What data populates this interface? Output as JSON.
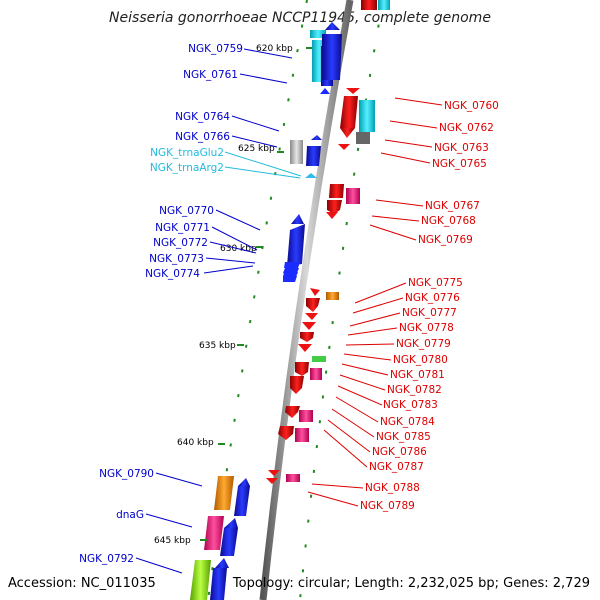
{
  "title": "Neisseria gonorrhoeae NCCP11945, complete genome",
  "footer": {
    "accession": "Accession: NC_011035",
    "topology": "Topology: circular; Length: 2,232,025 bp; Genes: 2,729"
  },
  "colors": {
    "forward_label": "#0000cc",
    "reverse_label": "#dd0000",
    "rna_label": "#22bbdd",
    "backbone": "#888888",
    "tick": "#228822"
  },
  "ticks": [
    "620 kbp",
    "625 kbp",
    "630 kbp",
    "635 kbp",
    "640 kbp",
    "645 kbp"
  ],
  "left_labels": [
    {
      "text": "NGK_0759",
      "type": "forward"
    },
    {
      "text": "NGK_0761",
      "type": "forward"
    },
    {
      "text": "NGK_0764",
      "type": "forward"
    },
    {
      "text": "NGK_0766",
      "type": "forward"
    },
    {
      "text": "NGK_trnaGlu2",
      "type": "rna"
    },
    {
      "text": "NGK_trnaArg2",
      "type": "rna"
    },
    {
      "text": "NGK_0770",
      "type": "forward"
    },
    {
      "text": "NGK_0771",
      "type": "forward"
    },
    {
      "text": "NGK_0772",
      "type": "forward"
    },
    {
      "text": "NGK_0773",
      "type": "forward"
    },
    {
      "text": "NGK_0774",
      "type": "forward"
    },
    {
      "text": "NGK_0790",
      "type": "forward"
    },
    {
      "text": "dnaG",
      "type": "forward"
    },
    {
      "text": "NGK_0792",
      "type": "forward"
    }
  ],
  "right_labels": [
    {
      "text": "NGK_0760"
    },
    {
      "text": "NGK_0762"
    },
    {
      "text": "NGK_0763"
    },
    {
      "text": "NGK_0765"
    },
    {
      "text": "NGK_0767"
    },
    {
      "text": "NGK_0768"
    },
    {
      "text": "NGK_0769"
    },
    {
      "text": "NGK_0775"
    },
    {
      "text": "NGK_0776"
    },
    {
      "text": "NGK_0777"
    },
    {
      "text": "NGK_0778"
    },
    {
      "text": "NGK_0779"
    },
    {
      "text": "NGK_0780"
    },
    {
      "text": "NGK_0781"
    },
    {
      "text": "NGK_0782"
    },
    {
      "text": "NGK_0783"
    },
    {
      "text": "NGK_0784"
    },
    {
      "text": "NGK_0785"
    },
    {
      "text": "NGK_0786"
    },
    {
      "text": "NGK_0787"
    },
    {
      "text": "NGK_0788"
    },
    {
      "text": "NGK_0789"
    }
  ]
}
